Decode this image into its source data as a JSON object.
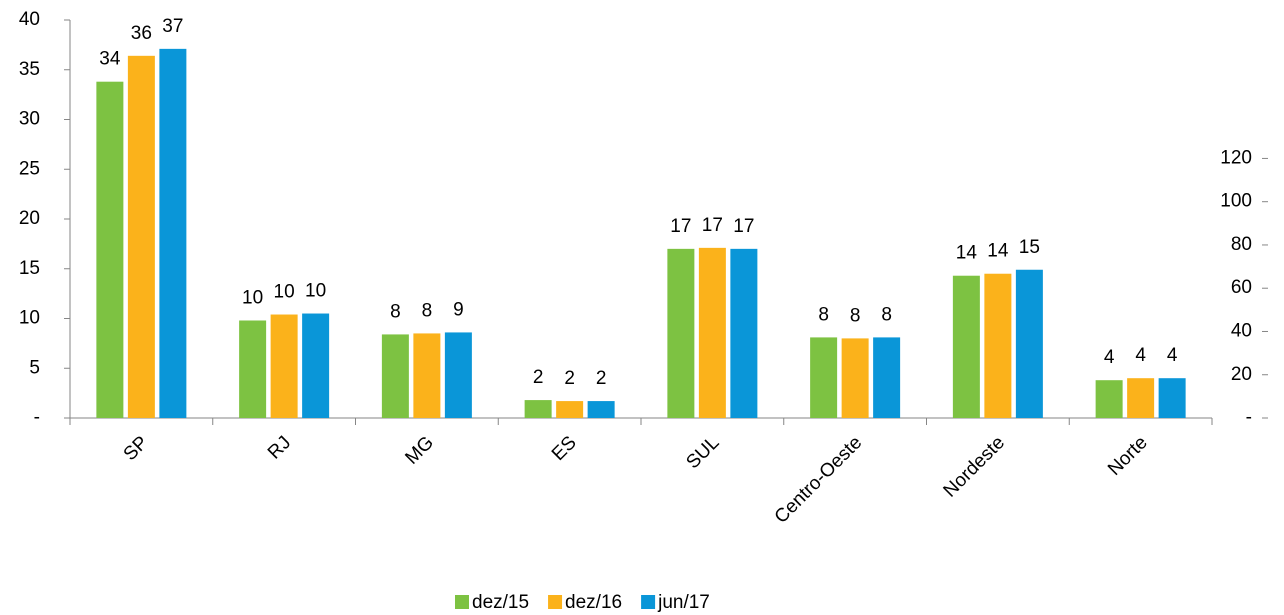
{
  "chart_data": {
    "type": "bar",
    "categories": [
      "SP",
      "RJ",
      "MG",
      "ES",
      "SUL",
      "Centro-Oeste",
      "Nordeste",
      "Norte"
    ],
    "series": [
      {
        "name": "dez/15",
        "color": "#7dc242",
        "values": [
          33.8,
          9.8,
          8.4,
          1.8,
          17.0,
          8.1,
          14.3,
          3.8
        ],
        "value_labels": [
          "34",
          "10",
          "8",
          "2",
          "17",
          "8",
          "14",
          "4"
        ]
      },
      {
        "name": "dez/16",
        "color": "#fbb21b",
        "values": [
          36.4,
          10.4,
          8.5,
          1.7,
          17.1,
          8.0,
          14.5,
          4.0
        ],
        "value_labels": [
          "36",
          "10",
          "8",
          "2",
          "17",
          "8",
          "14",
          "4"
        ]
      },
      {
        "name": "jun/17",
        "color": "#0a96d8",
        "values": [
          37.1,
          10.5,
          8.6,
          1.7,
          17.0,
          8.1,
          14.9,
          4.0
        ],
        "value_labels": [
          "37",
          "10",
          "9",
          "2",
          "17",
          "8",
          "15",
          "4"
        ]
      }
    ],
    "ylim": [
      0,
      40
    ],
    "yticks": [
      {
        "value": 0,
        "label": "-"
      },
      5,
      10,
      15,
      20,
      25,
      30,
      35,
      40
    ],
    "y2lim": [
      0,
      184
    ],
    "y2ticks": [
      {
        "value": 0,
        "label": "-"
      },
      20,
      40,
      60,
      80,
      100,
      120
    ],
    "grid": false,
    "legend": "bottom"
  }
}
